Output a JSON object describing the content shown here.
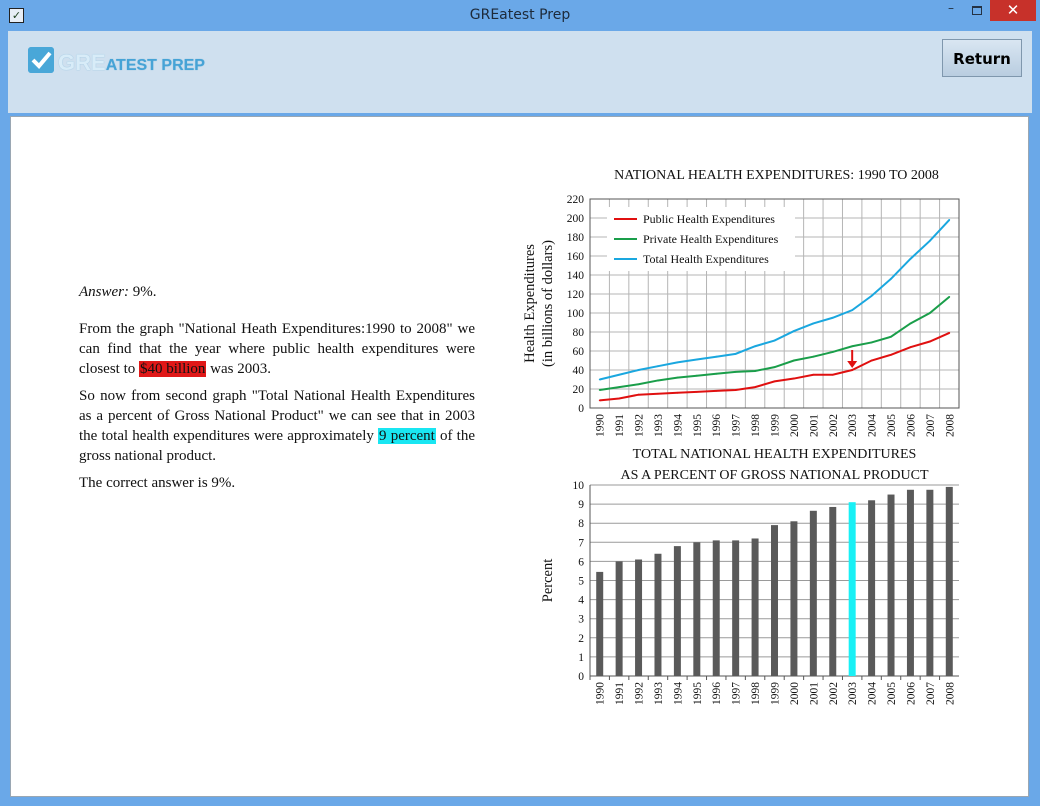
{
  "window": {
    "title": "GREatest Prep",
    "minimize": "–",
    "close": "✕",
    "icon": "checkbox-icon"
  },
  "header": {
    "logo_gre": "GRE",
    "logo_rest": "ATEST PREP",
    "return_label": "Return"
  },
  "answer": {
    "answer_label": "Answer:",
    "answer_value": " 9%.",
    "p1_start": "From the graph \"National Heath Expenditures:1990 to 2008\" we can find that the year where public health expenditures were closest to ",
    "p1_highlight": "$40 billion",
    "p1_end": " was 2003.",
    "p2_start": "So now from second graph \"Total National Health Expenditures as a percent of Gross National Product\" we can see that in 2003 the total health expenditures were approximately ",
    "p2_highlight": "9 percent",
    "p2_end": " of the gross national product.",
    "p3": "The correct answer is 9%.",
    "highlight_colors": {
      "red": "#e01818",
      "cyan": "#19e6f2"
    }
  },
  "chart_data": [
    {
      "type": "line",
      "title": "NATIONAL  HEALTH  EXPENDITURES:  1990 TO 2008",
      "ylabel_line1": "Health Expenditures",
      "ylabel_line2": "(in billions of dollars)",
      "xlabel": "",
      "x": [
        "1990",
        "1991",
        "1992",
        "1993",
        "1994",
        "1995",
        "1996",
        "1997",
        "1998",
        "1999",
        "2000",
        "2001",
        "2002",
        "2003",
        "2004",
        "2005",
        "2006",
        "2007",
        "2008"
      ],
      "ylim": [
        0,
        220
      ],
      "yticks": [
        0,
        20,
        40,
        60,
        80,
        100,
        120,
        140,
        160,
        180,
        200,
        220
      ],
      "grid": true,
      "legend_position": "top-left",
      "series": [
        {
          "name": "Public Health Expenditures",
          "color": "#e01010",
          "values": [
            8,
            10,
            14,
            15,
            16,
            17,
            18,
            19,
            22,
            28,
            31,
            35,
            35,
            40,
            50,
            56,
            64,
            70,
            79
          ]
        },
        {
          "name": "Private Health Expenditures",
          "color": "#1a9e4a",
          "values": [
            19,
            22,
            25,
            29,
            32,
            34,
            36,
            38,
            39,
            43,
            50,
            54,
            59,
            65,
            69,
            75,
            89,
            100,
            117
          ]
        },
        {
          "name": "Total Health Expenditures",
          "color": "#1aa7df",
          "values": [
            30,
            35,
            40,
            44,
            48,
            51,
            54,
            57,
            65,
            71,
            81,
            89,
            95,
            103,
            118,
            136,
            157,
            176,
            198
          ]
        }
      ],
      "annotation": {
        "x": "2003",
        "y": 40,
        "color": "#e01010",
        "icon": "down-arrow-icon"
      }
    },
    {
      "type": "bar",
      "title_line1": "TOTAL  NATIONAL  HEALTH  EXPENDITURES",
      "title_line2": "AS A PERCENT  OF GROSS  NATIONAL  PRODUCT",
      "ylabel": "Percent",
      "xlabel": "",
      "categories": [
        "1990",
        "1991",
        "1992",
        "1993",
        "1994",
        "1995",
        "1996",
        "1997",
        "1998",
        "1999",
        "2000",
        "2001",
        "2002",
        "2003",
        "2004",
        "2005",
        "2006",
        "2007",
        "2008"
      ],
      "values": [
        5.45,
        6.0,
        6.1,
        6.4,
        6.8,
        7.0,
        7.1,
        7.1,
        7.2,
        7.9,
        8.1,
        8.65,
        8.85,
        9.1,
        9.2,
        9.5,
        9.75,
        9.75,
        9.9
      ],
      "ylim": [
        0,
        10
      ],
      "yticks": [
        0,
        1,
        2,
        3,
        4,
        5,
        6,
        7,
        8,
        9,
        10
      ],
      "grid": true,
      "bar_color": "#5a5a5a",
      "highlight_category": "2003",
      "highlight_color": "#19f0f5"
    }
  ]
}
